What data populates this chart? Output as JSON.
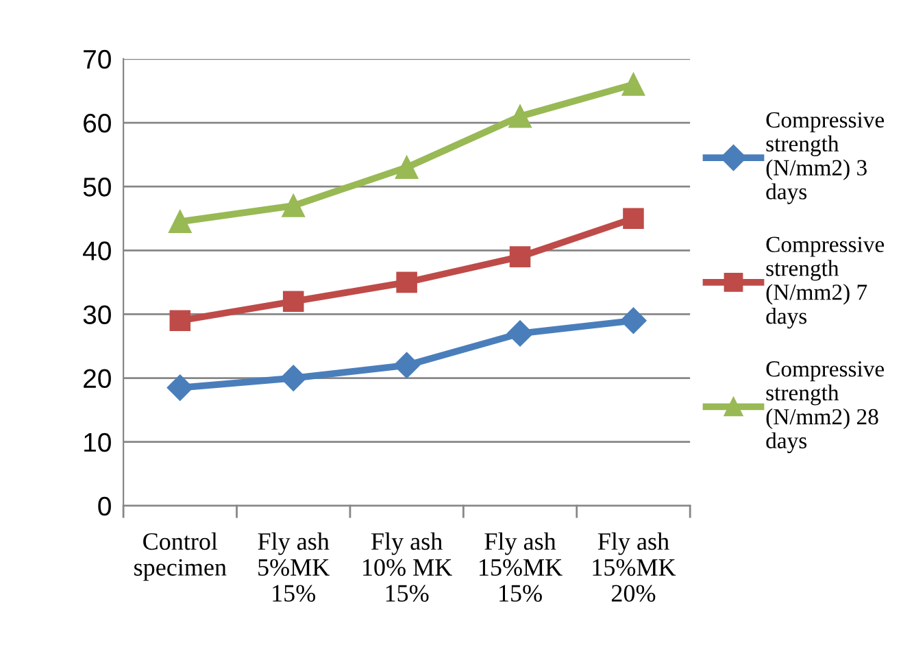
{
  "chart_data": {
    "type": "line",
    "categories": [
      "Control\nspecimen",
      "Fly ash\n5%MK\n15%",
      "Fly ash\n10% MK\n15%",
      "Fly ash\n15%MK\n15%",
      "Fly ash\n15%MK\n20%"
    ],
    "series": [
      {
        "name": "Compressive strength (N/mm2) 3 days",
        "color": "#4a7ebb",
        "marker": "diamond",
        "values": [
          18.5,
          20,
          22,
          27,
          29
        ]
      },
      {
        "name": "Compressive strength (N/mm2) 7 days",
        "color": "#be4b48",
        "marker": "square",
        "values": [
          29,
          32,
          35,
          39,
          45
        ]
      },
      {
        "name": "Compressive strength (N/mm2) 28 days",
        "color": "#98b954",
        "marker": "triangle",
        "values": [
          44.5,
          47,
          53,
          61,
          66
        ]
      }
    ],
    "ylim": [
      0,
      70
    ],
    "yticks": [
      0,
      10,
      20,
      30,
      40,
      50,
      60,
      70
    ],
    "grid": "y",
    "legend": "right",
    "line_style": "solid"
  }
}
